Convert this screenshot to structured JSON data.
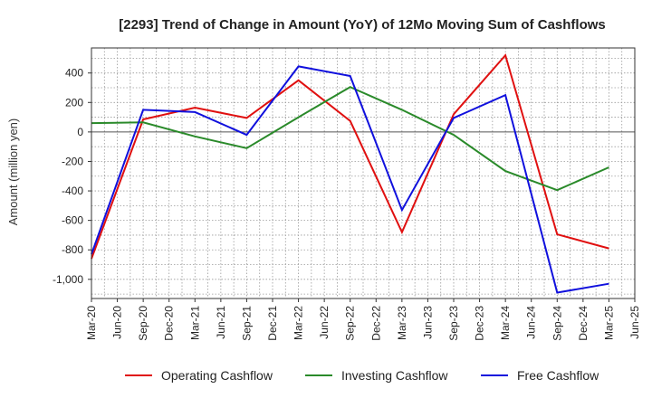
{
  "chart_data": {
    "type": "line",
    "title": "[2293]  Trend of Change in Amount (YoY) of 12Mo Moving Sum of Cashflows",
    "xlabel": "",
    "ylabel": "Amount (million yen)",
    "ylim": [
      -1130,
      570
    ],
    "yticks": [
      400,
      200,
      0,
      -200,
      -400,
      -600,
      -800,
      -1000
    ],
    "ytick_labels": [
      "400",
      "200",
      "0",
      "-200",
      "-400",
      "-600",
      "-800",
      "-1,000"
    ],
    "categories": [
      "Mar-20",
      "Jun-20",
      "Sep-20",
      "Dec-20",
      "Mar-21",
      "Jun-21",
      "Sep-21",
      "Dec-21",
      "Mar-22",
      "Jun-22",
      "Sep-22",
      "Dec-22",
      "Mar-23",
      "Jun-23",
      "Sep-23",
      "Dec-23",
      "Mar-24",
      "Jun-24",
      "Sep-24",
      "Dec-24",
      "Mar-25",
      "Jun-25"
    ],
    "grid": true,
    "legend_position": "bottom",
    "series": [
      {
        "name": "Operating Cashflow",
        "color": "#e01010",
        "points": [
          [
            0,
            -860
          ],
          [
            2,
            85
          ],
          [
            4,
            165
          ],
          [
            6,
            95
          ],
          [
            8,
            350
          ],
          [
            10,
            75
          ],
          [
            12,
            -680
          ],
          [
            14,
            120
          ],
          [
            16,
            520
          ],
          [
            18,
            -695
          ],
          [
            20,
            -790
          ]
        ]
      },
      {
        "name": "Investing Cashflow",
        "color": "#2a8a2a",
        "points": [
          [
            0,
            60
          ],
          [
            2,
            65
          ],
          [
            4,
            -30
          ],
          [
            6,
            -110
          ],
          [
            8,
            100
          ],
          [
            10,
            305
          ],
          [
            12,
            150
          ],
          [
            14,
            -20
          ],
          [
            16,
            -265
          ],
          [
            18,
            -395
          ],
          [
            20,
            -240
          ]
        ]
      },
      {
        "name": "Free Cashflow",
        "color": "#1010dd",
        "points": [
          [
            0,
            -830
          ],
          [
            2,
            150
          ],
          [
            4,
            135
          ],
          [
            6,
            -20
          ],
          [
            8,
            445
          ],
          [
            10,
            380
          ],
          [
            12,
            -530
          ],
          [
            14,
            95
          ],
          [
            16,
            250
          ],
          [
            18,
            -1090
          ],
          [
            20,
            -1030
          ]
        ]
      }
    ]
  }
}
